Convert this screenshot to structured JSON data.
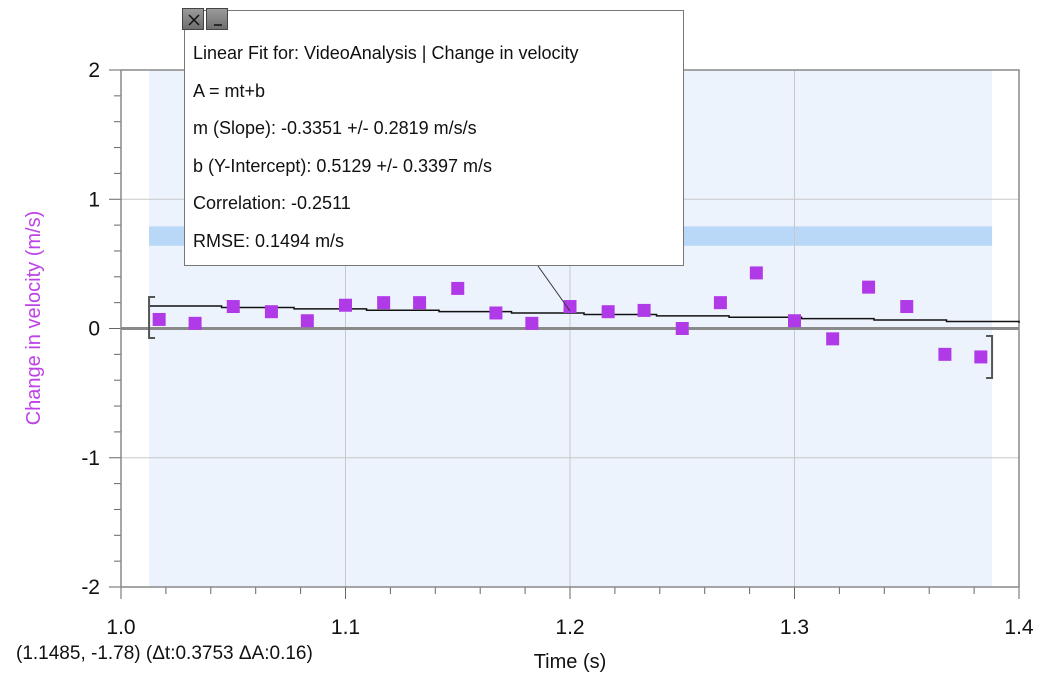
{
  "chart_data": {
    "type": "scatter",
    "xlabel": "Time (s)",
    "ylabel": "Change in velocity (m/s)",
    "xlim": [
      1.0,
      1.4
    ],
    "ylim": [
      -2,
      2
    ],
    "x_ticks": [
      1.0,
      1.1,
      1.2,
      1.3,
      1.4
    ],
    "x_tick_labels": [
      "1.0",
      "1.1",
      "1.2",
      "1.3",
      "1.4"
    ],
    "y_ticks": [
      2,
      1,
      0,
      -1,
      -2
    ],
    "y_tick_labels": [
      "2",
      "1",
      "0",
      "-1",
      "-2"
    ],
    "grid": true,
    "marker_color": "#b03ae8",
    "ylabel_color": "#c040e8",
    "selection_color": "#edf3fd",
    "band_color": "#b9d8f8",
    "selection_range": [
      1.0125,
      1.388
    ],
    "band_y_range": [
      0.64,
      0.79
    ],
    "series": [
      {
        "x": [
          1.017,
          1.033,
          1.05,
          1.067,
          1.083,
          1.1,
          1.117,
          1.133,
          1.15,
          1.167,
          1.183,
          1.2,
          1.217,
          1.233,
          1.25,
          1.267,
          1.283,
          1.3,
          1.317,
          1.333,
          1.35,
          1.367,
          1.383
        ],
        "y": [
          0.07,
          0.04,
          0.17,
          0.13,
          0.06,
          0.18,
          0.2,
          0.2,
          0.31,
          0.12,
          0.04,
          0.17,
          0.13,
          0.14,
          0.0,
          0.2,
          0.43,
          0.06,
          -0.08,
          0.32,
          0.17,
          -0.2,
          -0.22
        ]
      }
    ],
    "fit": {
      "slope": -0.3351,
      "intercept": 0.5129
    }
  },
  "fit_box": {
    "title": "Linear Fit for: VideoAnalysis | Change in velocity",
    "equation": "A = mt+b",
    "slope": "m (Slope): -0.3351 +/- 0.2819 m/s/s",
    "intercept": "b (Y-Intercept): 0.5129 +/- 0.3397 m/s",
    "correlation": "Correlation: -0.2511",
    "rmse": "RMSE: 0.1494 m/s",
    "close_icon": "close-icon",
    "minimize_icon": "minimize-icon"
  },
  "readout": "(1.1485, -1.78)  (Δt:0.3753 ΔA:0.16)"
}
